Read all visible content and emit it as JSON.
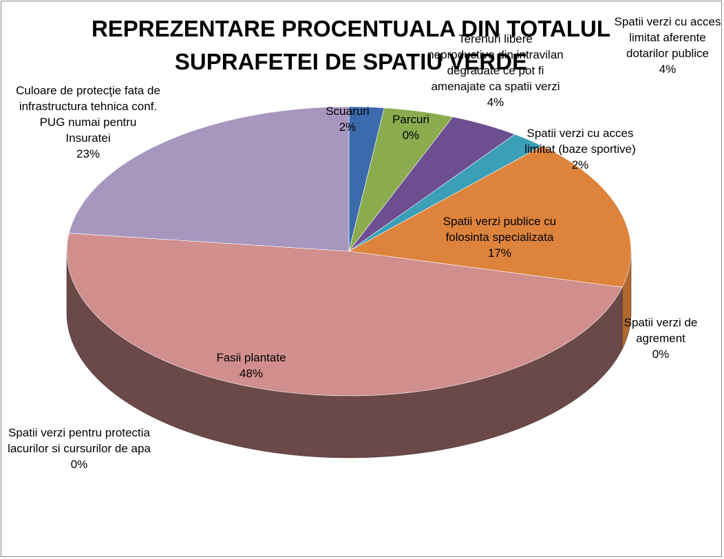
{
  "chart_data": {
    "type": "pie",
    "title": "REPREZENTARE PROCENTUALA DIN TOTALUL SUPRAFETEI DE SPATIU VERDE",
    "categories": [
      "Scuaruri",
      "Parcuri",
      "Spatii verzi cu acces limitat aferente dotarilor publice",
      "Terenuri libere neproductive din intravilan degradate ce pot fi amenajate ca spatii verzi",
      "Spatii verzi cu acces limitat (baze sportive)",
      "Spatii verzi publice cu folosinta specializata",
      "Spatii verzi de agrement",
      "Fasii plantate",
      "Spatii verzi pentru protectia lacurilor si cursurilor de apa",
      "Culoare de protecţie fata de infrastructura tehnica conf. PUG numai pentru Insuratei"
    ],
    "values": [
      2,
      0,
      4,
      4,
      2,
      17,
      0,
      48,
      0,
      23
    ],
    "value_labels": [
      "2%",
      "0%",
      "4%",
      "4%",
      "2%",
      "17%",
      "0%",
      "48%",
      "0%",
      "23%"
    ],
    "colors": [
      "#3c6bad",
      "#c0504d",
      "#8aac4f",
      "#6d4e91",
      "#3b9fb7",
      "#dd833c",
      "#4f81bd",
      "#d08e8c",
      "#9bbb59",
      "#a797bf"
    ]
  }
}
